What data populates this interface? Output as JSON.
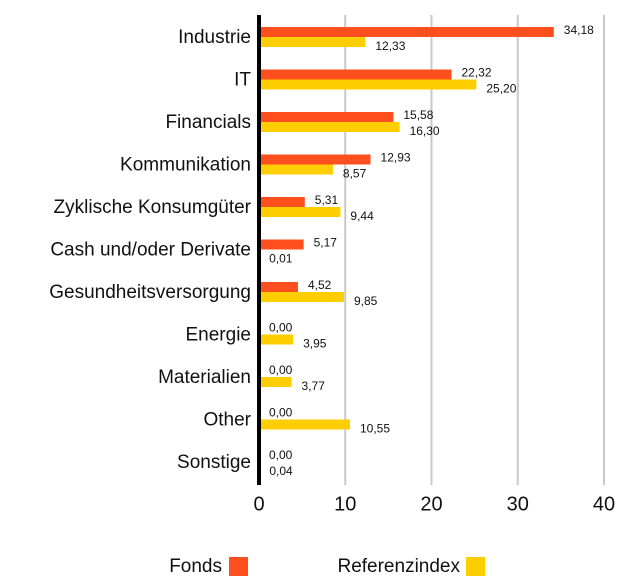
{
  "chart_data": {
    "type": "bar",
    "orientation": "horizontal",
    "categories": [
      "Industrie",
      "IT",
      "Financials",
      "Kommunikation",
      "Zyklische Konsumgüter",
      "Cash und/oder Derivate",
      "Gesundheitsversorgung",
      "Energie",
      "Materialien",
      "Other",
      "Sonstige"
    ],
    "series": [
      {
        "name": "Fonds",
        "color": "#ff4f1f",
        "values": [
          34.18,
          22.32,
          15.58,
          12.93,
          5.31,
          5.17,
          4.52,
          0,
          0,
          0,
          0
        ],
        "value_labels": [
          "34,18",
          "22,32",
          "15,58",
          "12,93",
          "5,31",
          "5,17",
          "4,52",
          "0,00",
          "0,00",
          "0,00",
          "0,00"
        ]
      },
      {
        "name": "Referenzindex",
        "color": "#ffce00",
        "values": [
          12.33,
          25.2,
          16.3,
          8.57,
          9.44,
          0.01,
          9.85,
          3.95,
          3.77,
          10.55,
          0.04
        ],
        "value_labels": [
          "12,33",
          "25,20",
          "16,30",
          "8,57",
          "9,44",
          "0,01",
          "9,85",
          "3,95",
          "3,77",
          "10,55",
          "0,04"
        ]
      }
    ],
    "xlim": [
      0,
      40
    ],
    "xticks": [
      0,
      10,
      20,
      30,
      40
    ],
    "grid": true
  }
}
